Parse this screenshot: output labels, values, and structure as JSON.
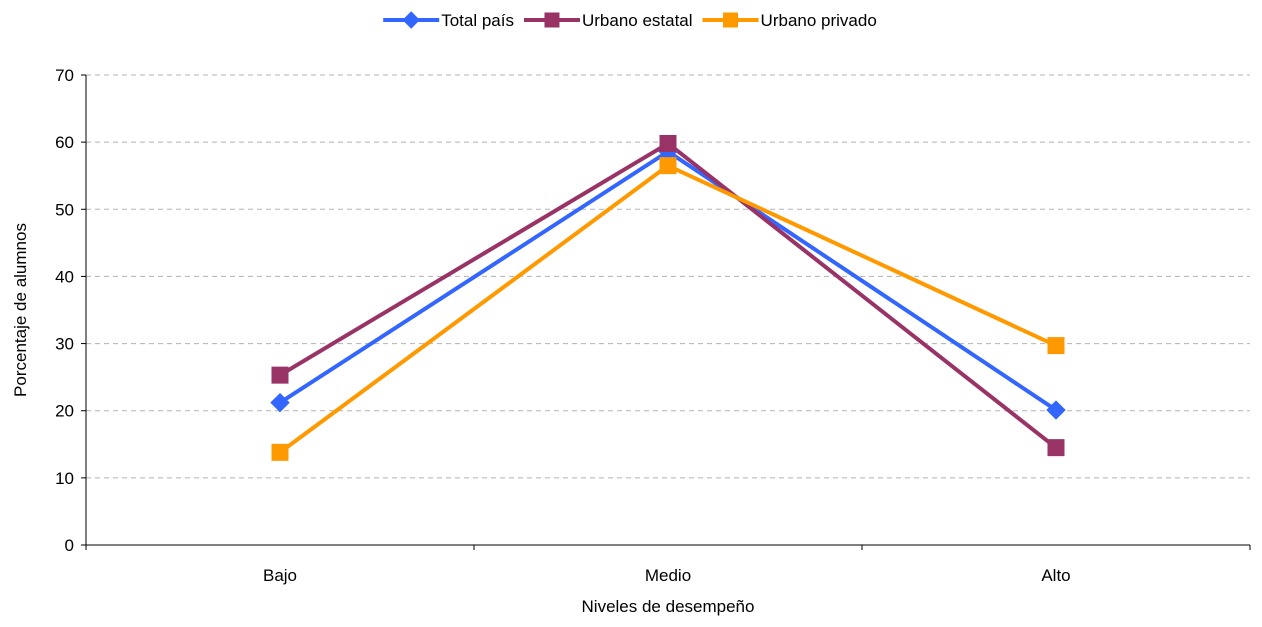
{
  "chart_data": {
    "type": "line",
    "title": "",
    "xlabel": "Niveles de desempeño",
    "ylabel": "Porcentaje de alumnos",
    "categories": [
      "Bajo",
      "Medio",
      "Alto"
    ],
    "ylim": [
      0,
      70
    ],
    "yticks": [
      0,
      10,
      20,
      30,
      40,
      50,
      60,
      70
    ],
    "grid": true,
    "legend_position": "top",
    "series": [
      {
        "name": "Total país",
        "values": [
          21.2,
          58.6,
          20.1
        ],
        "color": "#3366FF",
        "marker": "diamond"
      },
      {
        "name": "Urbano estatal",
        "values": [
          25.3,
          59.8,
          14.5
        ],
        "color": "#993366",
        "marker": "square"
      },
      {
        "name": "Urbano privado",
        "values": [
          13.8,
          56.5,
          29.7
        ],
        "color": "#FF9900",
        "marker": "square"
      }
    ]
  }
}
